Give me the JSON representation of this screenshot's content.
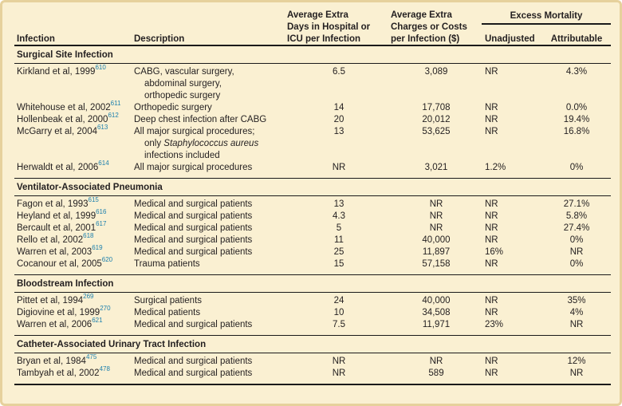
{
  "palette": {
    "background": "#faf0d2",
    "frame_border": "#e6d19c",
    "text": "#231f20",
    "rule": "#1a1a1a",
    "reference_link": "#1b7fad"
  },
  "header": {
    "infection": "Infection",
    "description": "Description",
    "days_lines": [
      "Average Extra",
      "Days in Hospital or",
      "ICU per Infection"
    ],
    "charges_lines": [
      "Average Extra",
      "Charges or Costs",
      "per Infection ($)"
    ],
    "excess_mortality": "Excess Mortality",
    "unadjusted": "Unadjusted",
    "attributable": "Attributable"
  },
  "sections": [
    {
      "title": "Surgical Site Infection",
      "rows": [
        {
          "study": "Kirkland et al, 1999",
          "reference": "610",
          "description_lines": [
            "CABG, vascular surgery,",
            "abdominal surgery,",
            "orthopedic surgery"
          ],
          "days": "6.5",
          "charges": "3,089",
          "unadjusted": "NR",
          "attributable": "4.3%"
        },
        {
          "study": "Whitehouse et al, 2002",
          "reference": "611",
          "description_lines": [
            "Orthopedic surgery"
          ],
          "days": "14",
          "charges": "17,708",
          "unadjusted": "NR",
          "attributable": "0.0%"
        },
        {
          "study": "Hollenbeak et al, 2000",
          "reference": "612",
          "description_lines": [
            "Deep chest infection after CABG"
          ],
          "days": "20",
          "charges": "20,012",
          "unadjusted": "NR",
          "attributable": "19.4%"
        },
        {
          "study": "McGarry et al, 2004",
          "reference": "613",
          "description_lines": [
            "All major surgical procedures;",
            "only *Staphylococcus aureus*",
            "infections included"
          ],
          "days": "13",
          "charges": "53,625",
          "unadjusted": "NR",
          "attributable": "16.8%"
        },
        {
          "study": "Herwaldt et al, 2006",
          "reference": "614",
          "description_lines": [
            "All major surgical procedures"
          ],
          "days": "NR",
          "charges": "3,021",
          "unadjusted": "1.2%",
          "attributable": "0%"
        }
      ]
    },
    {
      "title": "Ventilator-Associated Pneumonia",
      "rows": [
        {
          "study": "Fagon et al, 1993",
          "reference": "615",
          "description_lines": [
            "Medical and surgical patients"
          ],
          "days": "13",
          "charges": "NR",
          "unadjusted": "NR",
          "attributable": "27.1%"
        },
        {
          "study": "Heyland et al, 1999",
          "reference": "616",
          "description_lines": [
            "Medical and surgical patients"
          ],
          "days": "4.3",
          "charges": "NR",
          "unadjusted": "NR",
          "attributable": "5.8%"
        },
        {
          "study": "Bercault et al, 2001",
          "reference": "617",
          "description_lines": [
            "Medical and surgical patients"
          ],
          "days": "5",
          "charges": "NR",
          "unadjusted": "NR",
          "attributable": "27.4%"
        },
        {
          "study": "Rello et al, 2002",
          "reference": "618",
          "description_lines": [
            "Medical and surgical patients"
          ],
          "days": "11",
          "charges": "40,000",
          "unadjusted": "NR",
          "attributable": "0%"
        },
        {
          "study": "Warren et al, 2003",
          "reference": "619",
          "description_lines": [
            "Medical and surgical patients"
          ],
          "days": "25",
          "charges": "11,897",
          "unadjusted": "16%",
          "attributable": "NR"
        },
        {
          "study": "Cocanour et al, 2005",
          "reference": "620",
          "description_lines": [
            "Trauma patients"
          ],
          "days": "15",
          "charges": "57,158",
          "unadjusted": "NR",
          "attributable": "0%"
        }
      ]
    },
    {
      "title": "Bloodstream Infection",
      "rows": [
        {
          "study": "Pittet et al, 1994",
          "reference": "269",
          "description_lines": [
            "Surgical patients"
          ],
          "days": "24",
          "charges": "40,000",
          "unadjusted": "NR",
          "attributable": "35%"
        },
        {
          "study": "Digiovine et al, 1999",
          "reference": "270",
          "description_lines": [
            "Medical patients"
          ],
          "days": "10",
          "charges": "34,508",
          "unadjusted": "NR",
          "attributable": "4%"
        },
        {
          "study": "Warren et al, 2006",
          "reference": "621",
          "description_lines": [
            "Medical and surgical patients"
          ],
          "days": "7.5",
          "charges": "11,971",
          "unadjusted": "23%",
          "attributable": "NR"
        }
      ]
    },
    {
      "title": "Catheter-Associated Urinary Tract Infection",
      "rows": [
        {
          "study": "Bryan et al, 1984",
          "reference": "475",
          "description_lines": [
            "Medical and surgical patients"
          ],
          "days": "NR",
          "charges": "NR",
          "unadjusted": "NR",
          "attributable": "12%"
        },
        {
          "study": "Tambyah et al, 2002",
          "reference": "478",
          "description_lines": [
            "Medical and surgical patients"
          ],
          "days": "NR",
          "charges": "589",
          "unadjusted": "NR",
          "attributable": "NR"
        }
      ]
    }
  ]
}
